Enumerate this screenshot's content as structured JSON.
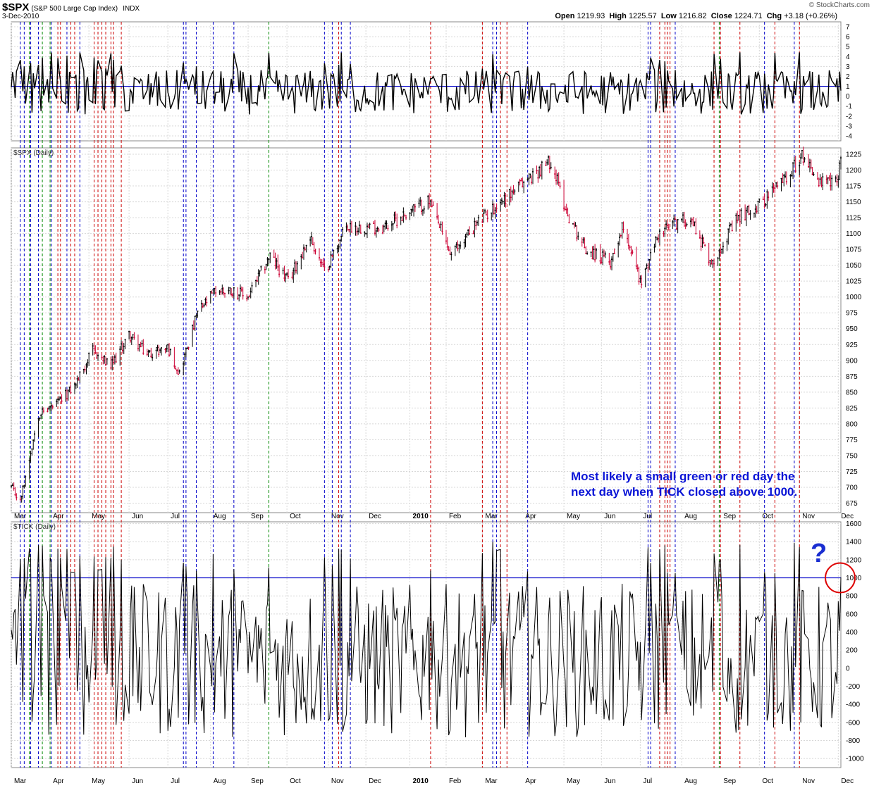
{
  "header": {
    "symbol": "$SPX",
    "description": "(S&P 500 Large Cap Index)",
    "exchange": "INDX",
    "date": "3-Dec-2010",
    "brand": "© StockCharts.com",
    "open_label": "Open",
    "open": "1219.93",
    "high_label": "High",
    "high": "1225.57",
    "low_label": "Low",
    "low": "1216.82",
    "close_label": "Close",
    "close": "1224.71",
    "chg_label": "Chg",
    "chg": "+3.18 (+0.26%)"
  },
  "annotations": {
    "note_line1": "Most likely a small green or red day the",
    "note_line2": "next day when TICK closed above 1000.",
    "question": "?"
  },
  "colors": {
    "blue_line": "#0000c8",
    "red_line": "#cc0000",
    "green_line": "#008800",
    "up_candle": "#000000",
    "down_candle": "#cc0033",
    "grid": "#d8d8d8",
    "circle": "#dd0000"
  },
  "chart_data": {
    "type": "line",
    "x_axis": {
      "labels": [
        "Mar",
        "Apr",
        "May",
        "Jun",
        "Jul",
        "Aug",
        "Sep",
        "Oct",
        "Nov",
        "Dec",
        "2010",
        "Feb",
        "Mar",
        "Apr",
        "May",
        "Jun",
        "Jul",
        "Aug",
        "Sep",
        "Oct",
        "Nov",
        "Dec"
      ],
      "start": "2009-03-02",
      "end": "2010-12-03"
    },
    "panels": [
      {
        "name": "top",
        "ylim": [
          -4.5,
          7.5
        ],
        "ticks": [
          -4,
          -3,
          -2,
          -1,
          0,
          1,
          2,
          3,
          4,
          5,
          6,
          7
        ],
        "reference_line": 1
      },
      {
        "name": "price",
        "label": "$SPX (Daily)",
        "ylim": [
          660,
          1235
        ],
        "ticks": [
          675,
          700,
          725,
          750,
          775,
          800,
          825,
          850,
          875,
          900,
          925,
          950,
          975,
          1000,
          1025,
          1050,
          1075,
          1100,
          1125,
          1150,
          1175,
          1200,
          1225
        ],
        "series": [
          {
            "name": "$SPX",
            "approx_closes": [
              [
                "2009-03-02",
                700
              ],
              [
                "2009-03-09",
                677
              ],
              [
                "2009-03-23",
                815
              ],
              [
                "2009-04-06",
                830
              ],
              [
                "2009-04-20",
                860
              ],
              [
                "2009-05-04",
                915
              ],
              [
                "2009-05-18",
                890
              ],
              [
                "2009-06-01",
                940
              ],
              [
                "2009-06-15",
                910
              ],
              [
                "2009-07-01",
                920
              ],
              [
                "2009-07-10",
                880
              ],
              [
                "2009-07-24",
                975
              ],
              [
                "2009-08-07",
                1010
              ],
              [
                "2009-08-20",
                1010
              ],
              [
                "2009-09-01",
                1000
              ],
              [
                "2009-09-18",
                1065
              ],
              [
                "2009-10-02",
                1025
              ],
              [
                "2009-10-19",
                1095
              ],
              [
                "2009-10-30",
                1040
              ],
              [
                "2009-11-16",
                1110
              ],
              [
                "2009-12-01",
                1110
              ],
              [
                "2009-12-15",
                1110
              ],
              [
                "2010-01-04",
                1135
              ],
              [
                "2010-01-19",
                1150
              ],
              [
                "2010-02-05",
                1065
              ],
              [
                "2010-02-22",
                1110
              ],
              [
                "2010-03-15",
                1150
              ],
              [
                "2010-04-05",
                1185
              ],
              [
                "2010-04-23",
                1215
              ],
              [
                "2010-05-06",
                1130
              ],
              [
                "2010-05-20",
                1075
              ],
              [
                "2010-06-08",
                1055
              ],
              [
                "2010-06-18",
                1115
              ],
              [
                "2010-07-02",
                1020
              ],
              [
                "2010-07-14",
                1095
              ],
              [
                "2010-07-26",
                1115
              ],
              [
                "2010-08-09",
                1125
              ],
              [
                "2010-08-26",
                1050
              ],
              [
                "2010-09-01",
                1080
              ],
              [
                "2010-09-15",
                1125
              ],
              [
                "2010-10-01",
                1145
              ],
              [
                "2010-10-15",
                1175
              ],
              [
                "2010-11-05",
                1225
              ],
              [
                "2010-11-16",
                1180
              ],
              [
                "2010-11-30",
                1180
              ],
              [
                "2010-12-03",
                1225
              ]
            ]
          }
        ]
      },
      {
        "name": "tick",
        "label": "$TICK (Daily)",
        "ylim": [
          -1100,
          1620
        ],
        "ticks": [
          -1000,
          -800,
          -600,
          -400,
          -200,
          0,
          200,
          400,
          600,
          800,
          1000,
          1200,
          1400,
          1600
        ],
        "reference_line": 1000,
        "series": [
          {
            "name": "$TICK",
            "description": "daily TICK close, oscillating roughly between -1050 and +1550"
          }
        ]
      }
    ],
    "vertical_markers": {
      "blue": [
        "2009-03-09",
        "2009-03-12",
        "2009-03-17",
        "2009-03-23",
        "2009-04-02",
        "2009-04-14",
        "2009-04-24",
        "2009-07-13",
        "2009-07-15",
        "2009-07-23",
        "2009-08-05",
        "2009-08-21",
        "2009-10-30",
        "2009-11-05",
        "2009-11-12",
        "2009-11-19",
        "2010-03-09",
        "2010-03-12",
        "2010-04-05",
        "2010-07-07",
        "2010-07-09",
        "2010-07-28",
        "2010-10-05",
        "2010-10-28"
      ],
      "red": [
        "2009-04-07",
        "2009-04-09",
        "2009-04-17",
        "2009-04-20",
        "2009-05-05",
        "2009-05-08",
        "2009-05-11",
        "2009-05-14",
        "2009-05-18",
        "2009-05-20",
        "2009-05-26",
        "2009-11-10",
        "2010-01-20",
        "2010-03-01",
        "2010-03-15",
        "2010-03-20",
        "2010-07-16",
        "2010-07-20",
        "2010-07-22",
        "2010-07-24",
        "2010-08-27",
        "2010-09-01",
        "2010-09-16",
        "2010-10-13",
        "2010-11-01"
      ],
      "green": [
        "2009-03-16",
        "2009-03-26",
        "2009-04-01",
        "2009-09-17",
        "2010-08-31"
      ]
    }
  }
}
